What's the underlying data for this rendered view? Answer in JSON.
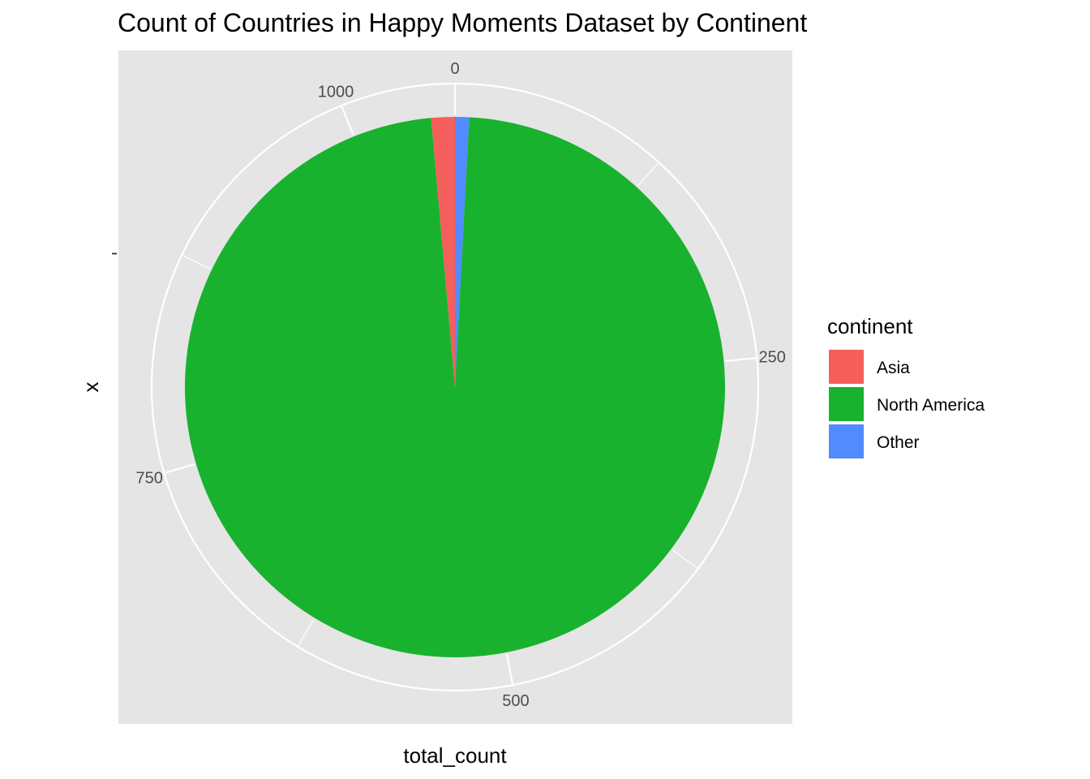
{
  "chart_data": {
    "type": "pie",
    "title": "Count of Countries in Happy Moments Dataset by Continent",
    "xlabel": "total_count",
    "ylabel": "x",
    "ytick": "-",
    "theta_ticks": [
      "0",
      "250",
      "500",
      "750",
      "1000"
    ],
    "theta_tick_values": [
      0,
      250,
      500,
      750,
      1000
    ],
    "total": 1065,
    "legend_title": "continent",
    "legend_position": "right",
    "grid": true,
    "slices": [
      {
        "name": "Other",
        "value": 9,
        "color": "#528bff"
      },
      {
        "name": "North America",
        "value": 1041,
        "color": "#19b22e"
      },
      {
        "name": "Asia",
        "value": 15,
        "color": "#f45f5b"
      }
    ],
    "legend": [
      {
        "name": "Asia",
        "color": "#f45f5b"
      },
      {
        "name": "North America",
        "color": "#19b22e"
      },
      {
        "name": "Other",
        "color": "#528bff"
      }
    ],
    "panel_color": "#e5e5e5",
    "grid_color": "#ffffff"
  }
}
